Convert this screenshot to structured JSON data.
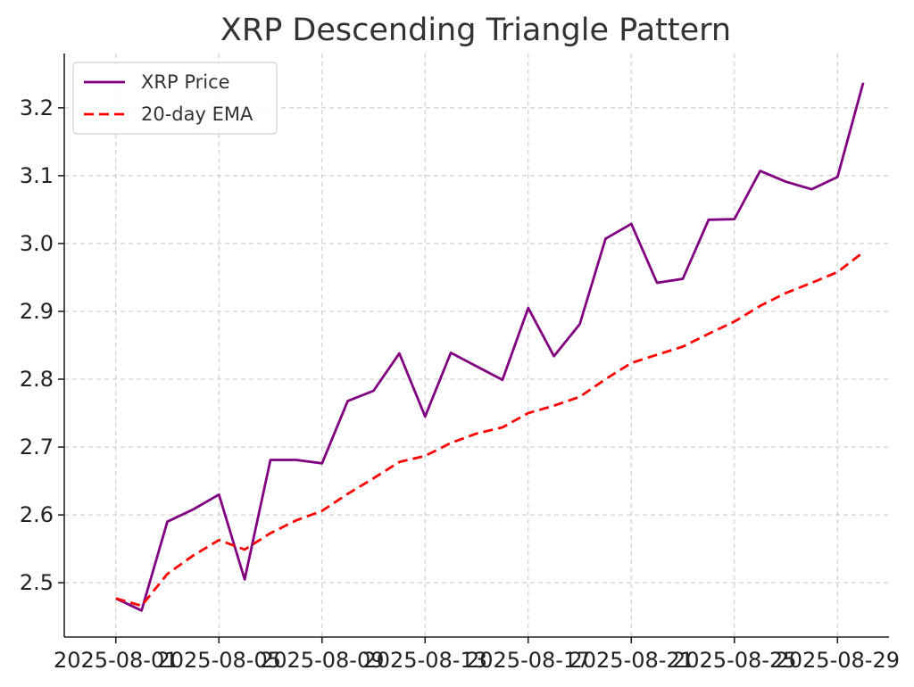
{
  "chart_data": {
    "type": "line",
    "title": "XRP Descending Triangle Pattern",
    "xlabel": "",
    "ylabel": "",
    "x": [
      "2025-08-01",
      "2025-08-02",
      "2025-08-03",
      "2025-08-04",
      "2025-08-05",
      "2025-08-06",
      "2025-08-07",
      "2025-08-08",
      "2025-08-09",
      "2025-08-10",
      "2025-08-11",
      "2025-08-12",
      "2025-08-13",
      "2025-08-14",
      "2025-08-15",
      "2025-08-16",
      "2025-08-17",
      "2025-08-18",
      "2025-08-19",
      "2025-08-20",
      "2025-08-21",
      "2025-08-22",
      "2025-08-23",
      "2025-08-24",
      "2025-08-25",
      "2025-08-26",
      "2025-08-27",
      "2025-08-28",
      "2025-08-29",
      "2025-08-30"
    ],
    "x_ticks": [
      "2025-08-01",
      "2025-08-05",
      "2025-08-09",
      "2025-08-13",
      "2025-08-17",
      "2025-08-21",
      "2025-08-25",
      "2025-08-29"
    ],
    "xlim": [
      "2025-07-30",
      "2025-08-31"
    ],
    "y_ticks": [
      2.5,
      2.6,
      2.7,
      2.8,
      2.9,
      3.0,
      3.1,
      3.2
    ],
    "ylim": [
      2.42,
      3.28
    ],
    "grid": true,
    "legend_position": "top-left",
    "series": [
      {
        "name": "XRP Price",
        "color": "#800080",
        "style": "solid",
        "values": [
          2.477,
          2.459,
          2.59,
          2.608,
          2.63,
          2.505,
          2.681,
          2.681,
          2.676,
          2.768,
          2.783,
          2.838,
          2.745,
          2.839,
          2.819,
          2.799,
          2.905,
          2.834,
          2.881,
          3.007,
          3.029,
          2.942,
          2.948,
          3.035,
          3.036,
          3.107,
          3.091,
          3.08,
          3.098,
          3.237
        ]
      },
      {
        "name": "20-day EMA",
        "color": "#ff0000",
        "style": "dashed",
        "values": [
          2.477,
          2.466,
          2.513,
          2.54,
          2.563,
          2.549,
          2.573,
          2.592,
          2.606,
          2.631,
          2.654,
          2.678,
          2.687,
          2.706,
          2.72,
          2.729,
          2.75,
          2.761,
          2.774,
          2.8,
          2.824,
          2.836,
          2.848,
          2.867,
          2.885,
          2.908,
          2.927,
          2.942,
          2.958,
          2.987
        ]
      }
    ]
  }
}
